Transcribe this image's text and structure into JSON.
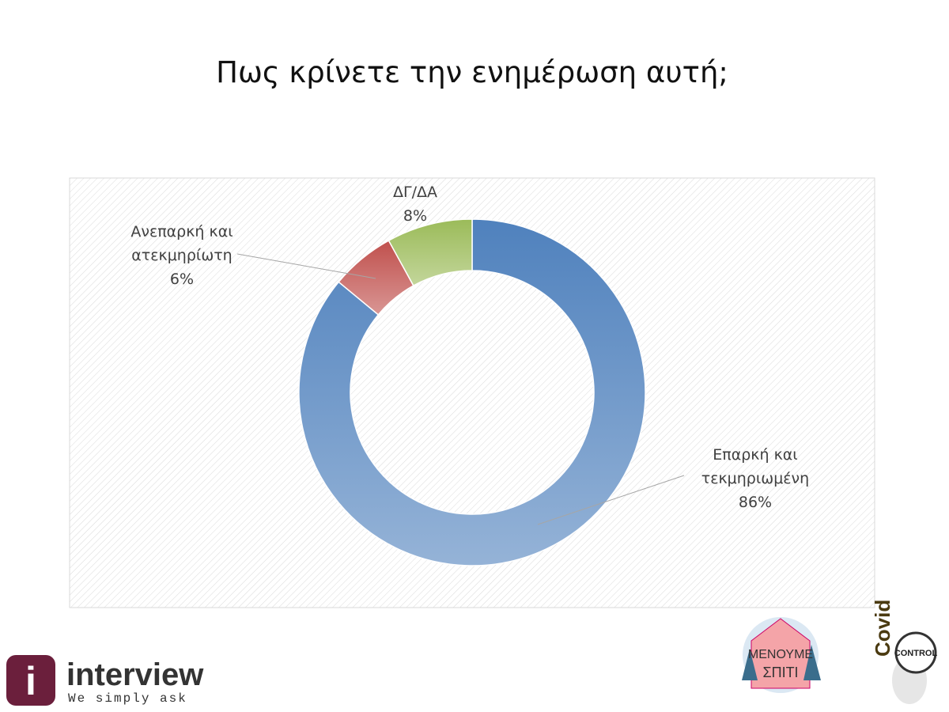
{
  "chart_data": {
    "type": "donut",
    "title": "Πως κρίνετε την ενημέρωση αυτή;",
    "categories": [
      "Επαρκή και τεκμηριωμένη",
      "Ανεπαρκή και ατεκμηρίωτη",
      "ΔΓ/ΔΑ"
    ],
    "values": [
      86,
      6,
      8
    ],
    "value_labels": [
      "86%",
      "6%",
      "8%"
    ],
    "colors": [
      "#4f81bd",
      "#c0504d",
      "#9bbb59"
    ]
  },
  "footer": {
    "brand": "interview",
    "tagline": "We simply ask",
    "campaign_line1": "ΜΕΝΟΥΜΕ",
    "campaign_line2": "ΣΠΙΤΙ",
    "covid": "Covid",
    "control": "CONTROL"
  }
}
